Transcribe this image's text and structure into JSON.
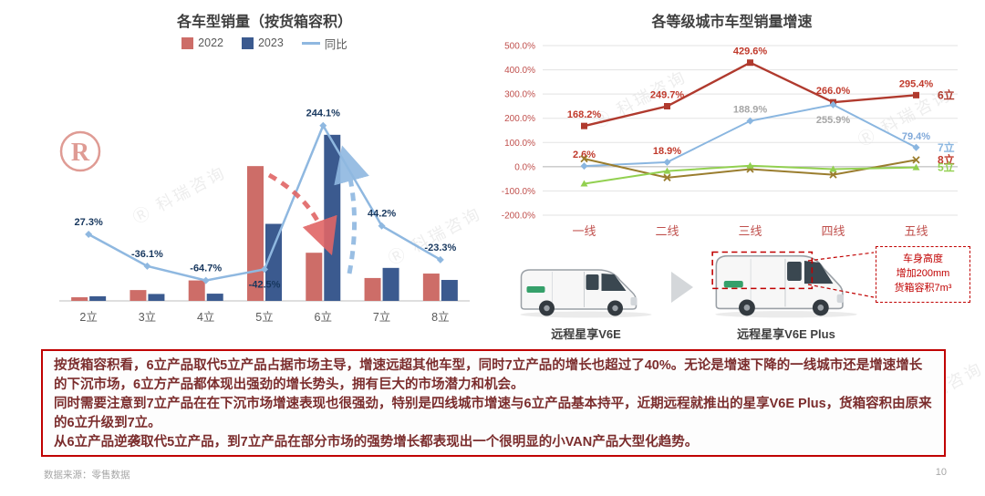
{
  "page": {
    "footer_source": "数据来源：零售数据",
    "page_number": "10",
    "watermark_text": "科瑞咨询",
    "accent_color": "#c00000"
  },
  "chart_data": [
    {
      "type": "bar",
      "title": "各车型销量（按货箱容积）",
      "categories": [
        "2立",
        "3立",
        "4立",
        "5立",
        "6立",
        "7立",
        "8立"
      ],
      "legend_position": "top",
      "series": [
        {
          "name": "2022",
          "kind": "bar",
          "color": "#cd6d68",
          "values": [
            3,
            9,
            17,
            112,
            40,
            19,
            22.7
          ]
        },
        {
          "name": "2023",
          "kind": "bar",
          "color": "#3b5a8f",
          "values": [
            3.82,
            5.75,
            6,
            64,
            138,
            27.4,
            17.4
          ]
        },
        {
          "name": "同比",
          "kind": "line",
          "color": "#8fb8e0",
          "values": [
            27.3,
            -36.1,
            -64.7,
            -42.5,
            244.1,
            44.2,
            -23.3
          ],
          "labels": [
            "27.3%",
            "-36.1%",
            "-64.7%",
            "-42.5%",
            "244.1%",
            "44.2%",
            "-23.3%"
          ],
          "label_color": "#17375e"
        }
      ]
    },
    {
      "type": "line",
      "title": "各等级城市车型销量增速",
      "categories": [
        "一线",
        "二线",
        "三线",
        "四线",
        "五线"
      ],
      "ylim": [
        -200,
        500
      ],
      "yticks": [
        "500.0%",
        "400.0%",
        "300.0%",
        "200.0%",
        "100.0%",
        "0.0%",
        "-100.0%",
        "-200.0%"
      ],
      "grid": true,
      "legend_position": "line-end-labels",
      "series": [
        {
          "name": "6立",
          "color": "#b03a2e",
          "marker": "square",
          "values": [
            168.2,
            249.7,
            429.6,
            266.0,
            295.4
          ],
          "labels": [
            "168.2%",
            "249.7%",
            "429.6%",
            "266.0%",
            "295.4%"
          ],
          "label_color": "#c0392b"
        },
        {
          "name": "7立",
          "color": "#8ab6e0",
          "marker": "diamond",
          "values": [
            2.6,
            18.9,
            188.9,
            255.9,
            79.4
          ],
          "labels": [
            "2.6%",
            "18.9%",
            "188.9%",
            "255.9%",
            "79.4%"
          ],
          "label_colors": [
            "#c0392b",
            "#c0392b",
            "#a6a6a6",
            "#a6a6a6",
            "#7fa8d9"
          ],
          "label_dy": [
            -9,
            -9,
            -9,
            20,
            -9
          ]
        },
        {
          "name": "8立",
          "color": "#9a7d2e",
          "marker": "x",
          "values": [
            33,
            -45,
            -10,
            -33,
            28
          ],
          "labels": [],
          "name_color": "#c0392b"
        },
        {
          "name": "5立",
          "color": "#92d050",
          "marker": "triangle",
          "values": [
            -70,
            -18,
            4,
            -10,
            -3
          ],
          "labels": []
        }
      ]
    }
  ],
  "vans": {
    "left_label": "远程星享V6E",
    "right_label": "远程星享V6E Plus",
    "annotation_lines": [
      "车身高度",
      "增加200mm",
      "货箱容积7m³"
    ]
  },
  "analysis": {
    "paragraphs": [
      "按货箱容积看，6立产品取代5立产品占据市场主导，增速远超其他车型，同时7立产品的增长也超过了40%。无论是增速下降的一线城市还是增速增长的下沉市场，6立方产品都体现出强劲的增长势头，拥有巨大的市场潜力和机会。",
      "同时需要注意到7立产品在在下沉市场增速表现也很强劲，特别是四线城市增速与6立产品基本持平，近期远程就推出的星享V6E Plus，货箱容积由原来的6立升级到7立。",
      "从6立产品逆袭取代5立产品，到7立产品在部分市场的强势增长都表现出一个很明显的小VAN产品大型化趋势。"
    ]
  }
}
